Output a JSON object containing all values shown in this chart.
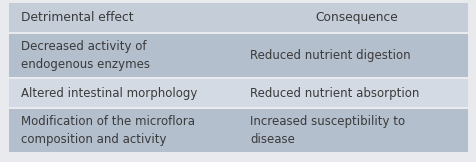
{
  "header": [
    "Detrimental effect",
    "Consequence"
  ],
  "rows": [
    [
      "Decreased activity of\nendogenous enzymes",
      "Reduced nutrient digestion"
    ],
    [
      "Altered intestinal morphology",
      "Reduced nutrient absorption"
    ],
    [
      "Modification of the microflora\ncomposition and activity",
      "Increased susceptibility to\ndisease"
    ]
  ],
  "header_bg": "#c5cdd9",
  "row_bg_dark": "#b4bfce",
  "row_bg_light": "#d4dae4",
  "outer_bg": "#e8eaed",
  "text_color": "#3a3a3a",
  "font_size": 8.5,
  "header_font_size": 8.8,
  "col_split": 0.495,
  "fig_width": 4.77,
  "fig_height": 1.62,
  "dpi": 100
}
